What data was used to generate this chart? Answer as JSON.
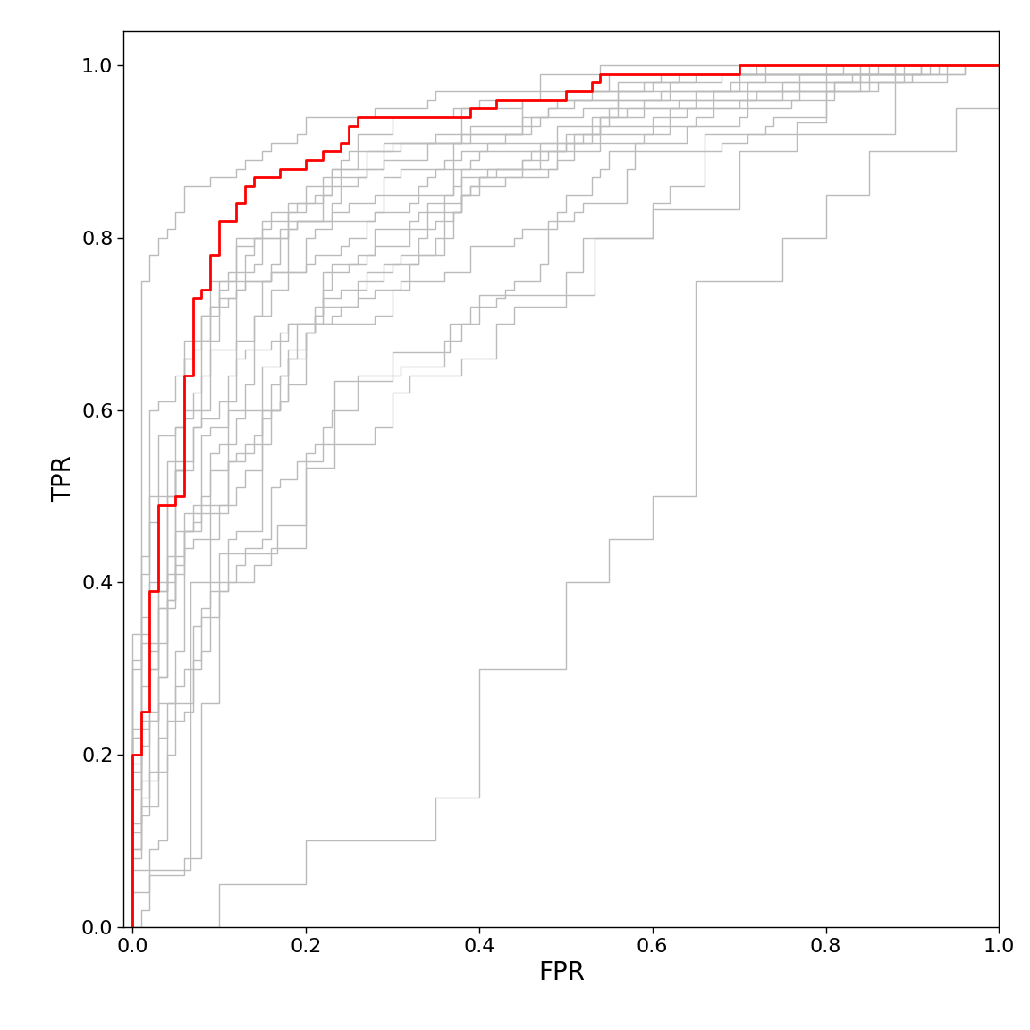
{
  "title": "",
  "xlabel": "FPR",
  "ylabel": "TPR",
  "xlim": [
    -0.01,
    1.0
  ],
  "ylim": [
    0.0,
    1.04
  ],
  "background_color": "#ffffff",
  "plot_background": "#ffffff",
  "gray_color": "#bbbbbb",
  "red_color": "#ff0000",
  "linewidth_gray": 1.0,
  "linewidth_red": 2.0,
  "xlabel_fontsize": 20,
  "ylabel_fontsize": 20,
  "tick_fontsize": 16
}
